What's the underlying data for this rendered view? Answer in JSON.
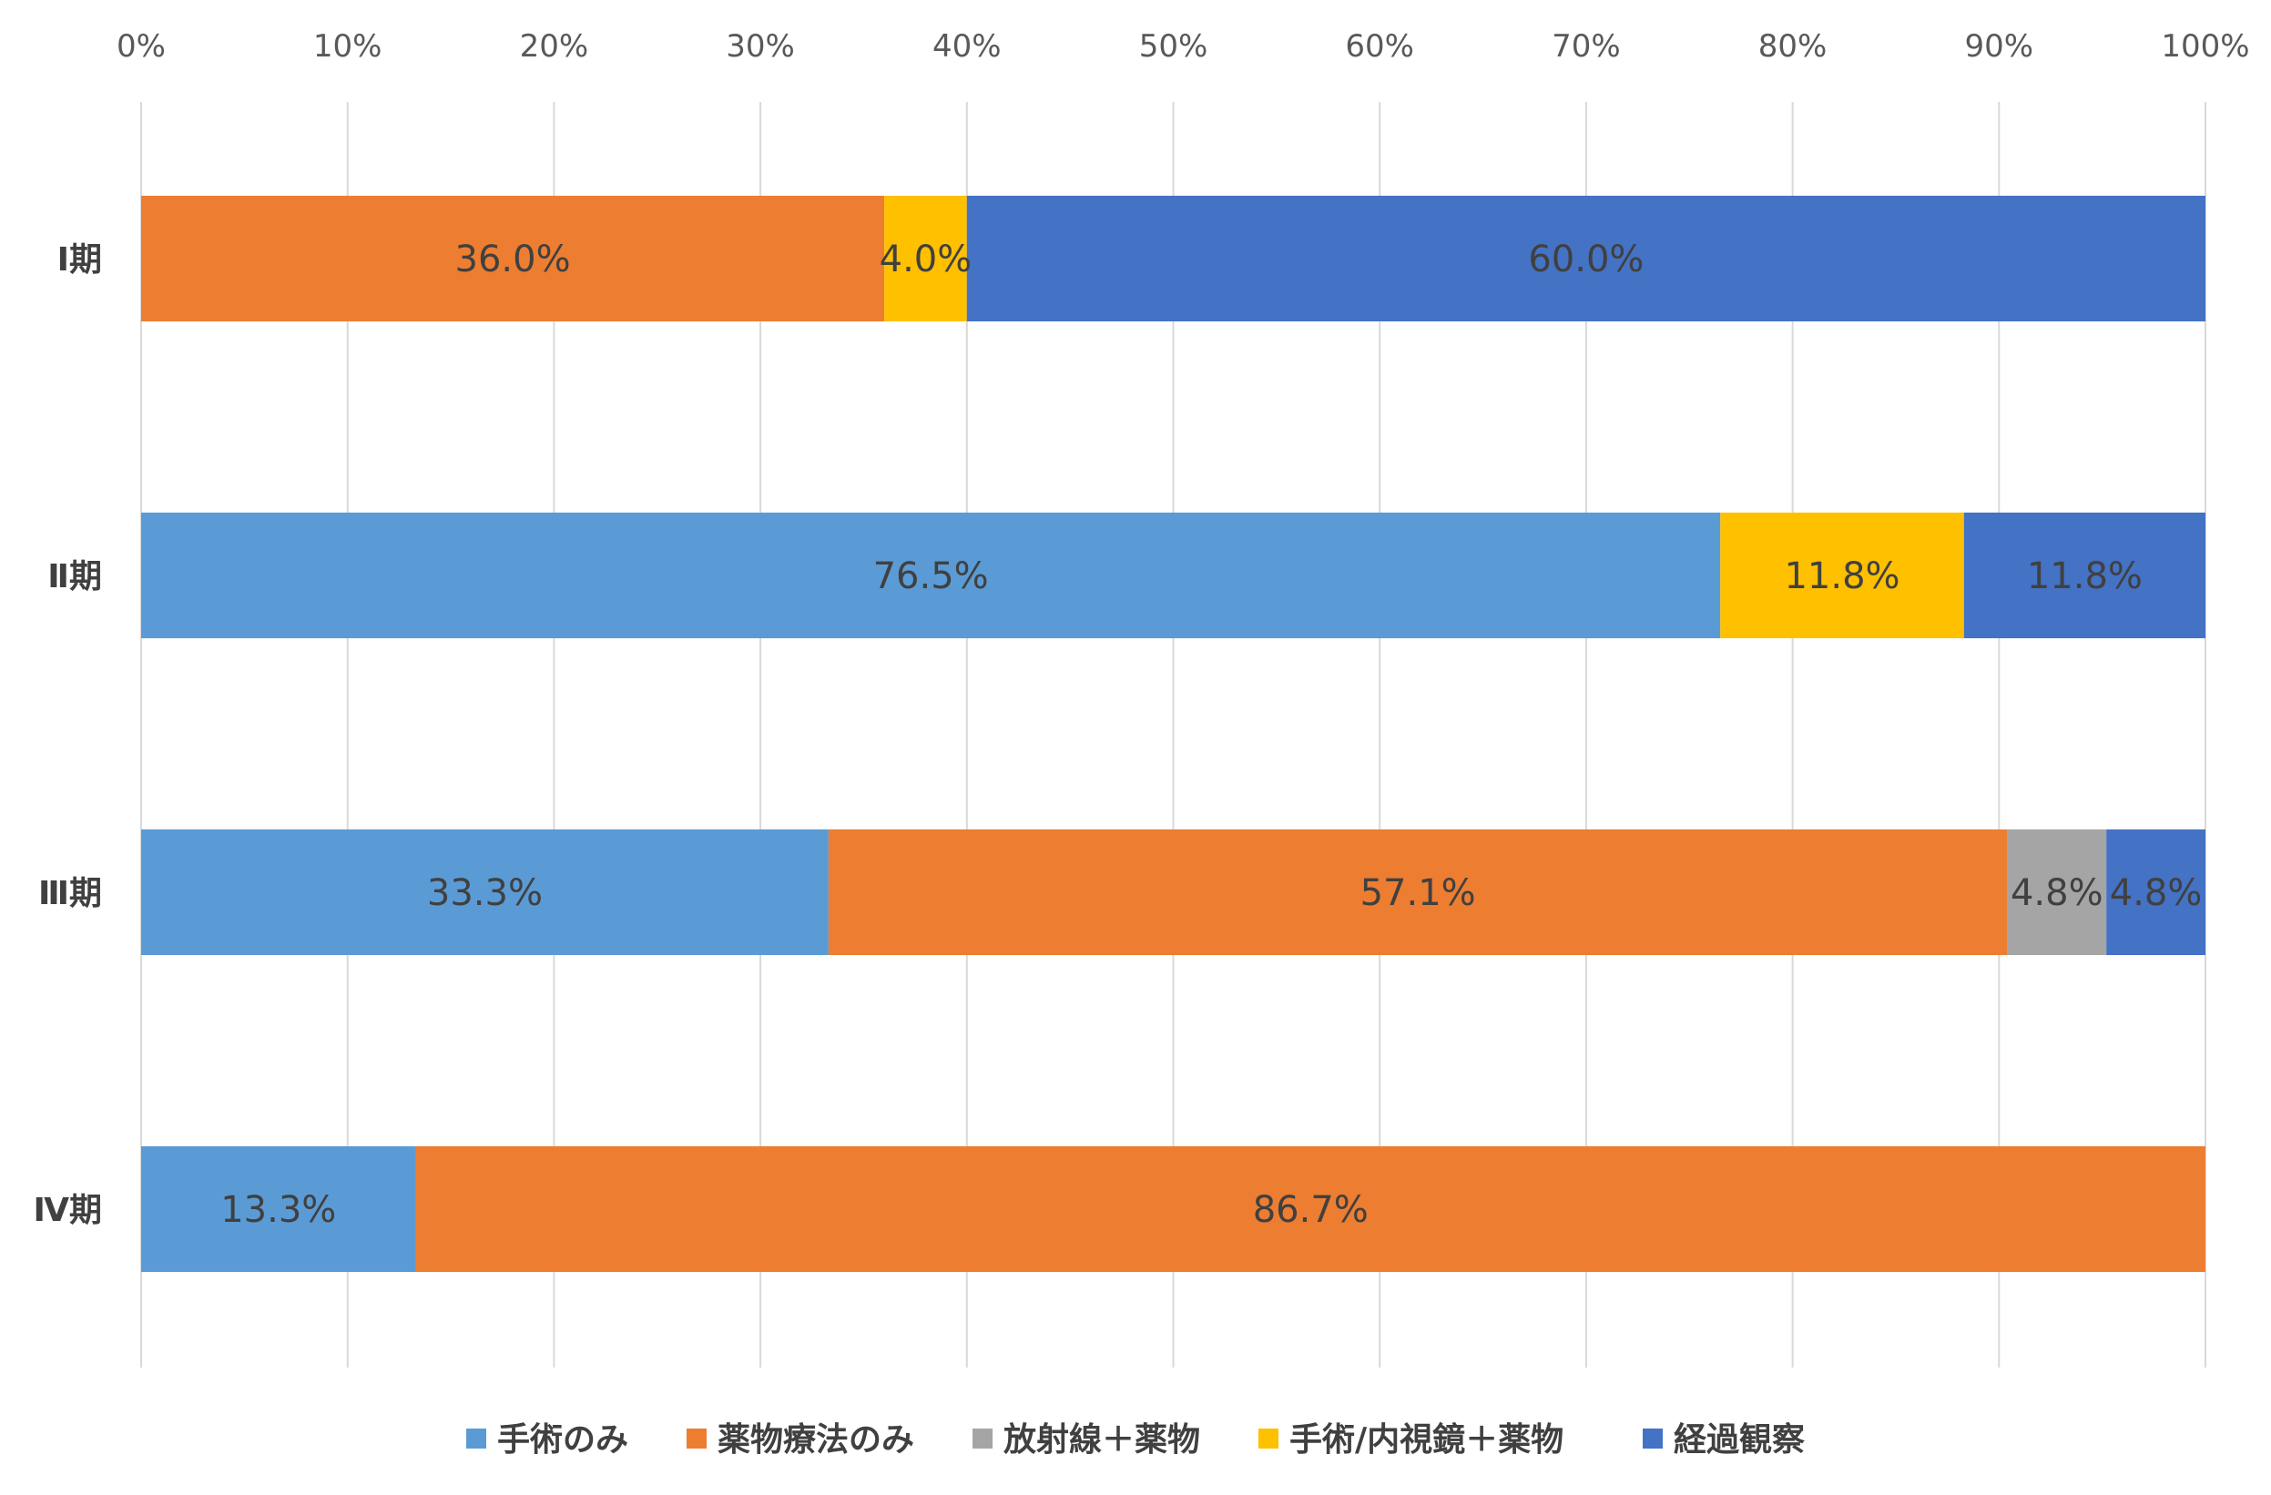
{
  "chart_data": {
    "type": "bar",
    "orientation": "horizontal",
    "stacked": "percent",
    "categories": [
      "Ⅰ期",
      "Ⅱ期",
      "Ⅲ期",
      "Ⅳ期"
    ],
    "series": [
      {
        "name": "手術のみ",
        "color": "#5b9bd5",
        "values": [
          0,
          76.5,
          33.3,
          13.3
        ]
      },
      {
        "name": "薬物療法のみ",
        "color": "#ed7d31",
        "values": [
          36.0,
          0,
          57.1,
          86.7
        ]
      },
      {
        "name": "放射線＋薬物",
        "color": "#a5a5a5",
        "values": [
          0,
          0,
          4.8,
          0
        ]
      },
      {
        "name": "手術/内視鏡＋薬物",
        "color": "#ffc000",
        "values": [
          4.0,
          11.8,
          0,
          0
        ]
      },
      {
        "name": "経過観察",
        "color": "#4472c4",
        "values": [
          60.0,
          11.8,
          4.8,
          0
        ]
      }
    ],
    "data_labels": [
      [
        "",
        "36.0%",
        "",
        "4.0%",
        "60.0%"
      ],
      [
        "76.5%",
        "",
        "",
        "11.8%",
        "11.8%"
      ],
      [
        "33.3%",
        "57.1%",
        "4.8%",
        "",
        "4.8%"
      ],
      [
        "13.3%",
        "86.7%",
        "",
        "",
        ""
      ]
    ],
    "xticks": [
      "0%",
      "10%",
      "20%",
      "30%",
      "40%",
      "50%",
      "60%",
      "70%",
      "80%",
      "90%",
      "100%"
    ],
    "xlim": [
      0,
      100
    ],
    "axis_position": "top",
    "grid": true,
    "legend_position": "bottom",
    "title": "",
    "xlabel": "",
    "ylabel": ""
  }
}
